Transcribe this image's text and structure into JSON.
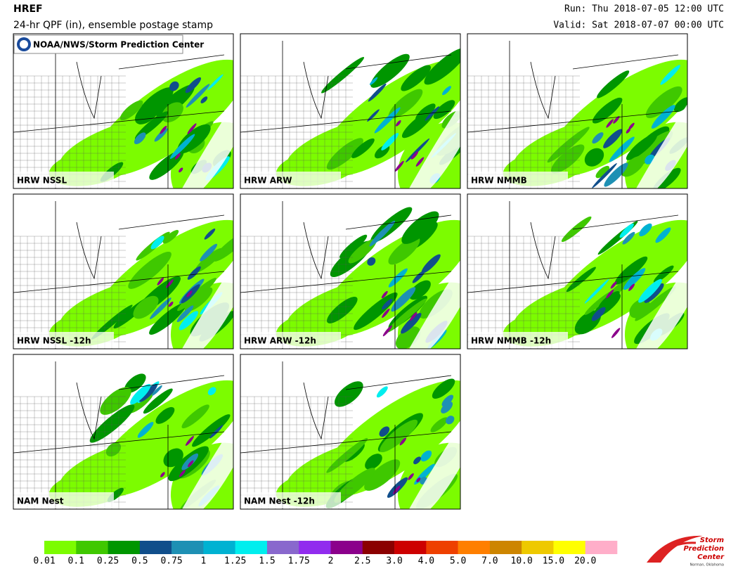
{
  "header": {
    "title": "HREF",
    "subtitle": "24-hr QPF (in), ensemble postage stamp",
    "run": "Run: Thu 2018-07-05 12:00 UTC",
    "valid": "Valid: Sat 2018-07-07 00:00 UTC"
  },
  "credit": "NOAA/NWS/Storm Prediction Center",
  "panels": [
    "HRW NSSL",
    "HRW ARW",
    "HRW NMMB",
    "HRW NSSL -12h",
    "HRW ARW -12h",
    "HRW NMMB -12h",
    "NAM Nest",
    "NAM Nest -12h"
  ],
  "legend": {
    "labels": [
      "0.01",
      "0.1",
      "0.25",
      "0.5",
      "0.75",
      "1",
      "1.25",
      "1.5",
      "1.75",
      "2",
      "2.5",
      "3.0",
      "4.0",
      "5.0",
      "7.0",
      "10.0",
      "15.0",
      "20.0"
    ],
    "colors": [
      "#7cfc00",
      "#3fc800",
      "#009600",
      "#104e8b",
      "#1e90b4",
      "#00b2d2",
      "#00eeee",
      "#8968cd",
      "#912cee",
      "#8b008b",
      "#8b0000",
      "#cd0000",
      "#ee4000",
      "#ff7f00",
      "#cd8500",
      "#eec900",
      "#ffff00",
      "#ffaec9"
    ]
  },
  "logo": {
    "lines": [
      "Storm",
      "Prediction",
      "Center"
    ],
    "place": "Norman, Oklahoma"
  }
}
